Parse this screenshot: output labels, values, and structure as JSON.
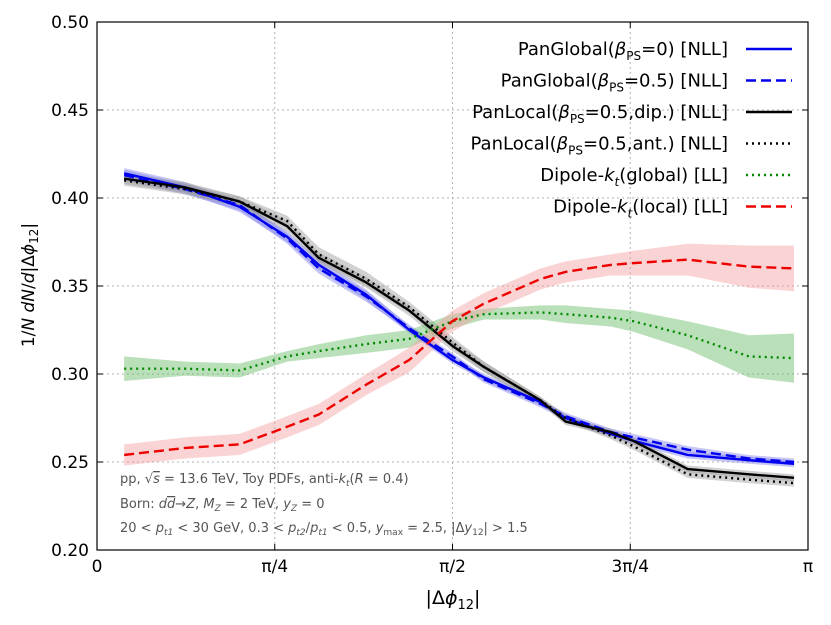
{
  "chart_data": {
    "type": "line",
    "xlabel": "|Δφ₁₂|",
    "ylabel": "1/N dN/d|Δφ₁₂|",
    "xlim": [
      0,
      3.14159
    ],
    "ylim": [
      0.2,
      0.5
    ],
    "xticks": [
      {
        "value": 0,
        "label": "0"
      },
      {
        "value": 0.7854,
        "label": "π/4"
      },
      {
        "value": 1.5708,
        "label": "π/2"
      },
      {
        "value": 2.3562,
        "label": "3π/4"
      },
      {
        "value": 3.14159,
        "label": "π"
      }
    ],
    "yticks": [
      {
        "value": 0.2,
        "label": "0.20"
      },
      {
        "value": 0.25,
        "label": "0.25"
      },
      {
        "value": 0.3,
        "label": "0.30"
      },
      {
        "value": 0.35,
        "label": "0.35"
      },
      {
        "value": 0.4,
        "label": "0.40"
      },
      {
        "value": 0.45,
        "label": "0.45"
      },
      {
        "value": 0.5,
        "label": "0.50"
      }
    ],
    "grid": true,
    "legend_position": "top-right",
    "x": [
      0.12,
      0.39,
      0.63,
      0.84,
      0.98,
      1.19,
      1.38,
      1.57,
      1.71,
      1.96,
      2.07,
      2.27,
      2.37,
      2.61,
      2.88,
      3.08
    ],
    "series": [
      {
        "name": "PanGlobal(β_PS=0) [NLL]",
        "name_parts": {
          "pre": "PanGlobal(",
          "sym": "β",
          "sub": "PS",
          "post": "=0) [NLL]"
        },
        "color": "#0000ee",
        "dash": "solid",
        "band": "#8080ee",
        "values": [
          0.414,
          0.406,
          0.395,
          0.378,
          0.362,
          0.345,
          0.325,
          0.308,
          0.298,
          0.284,
          0.275,
          0.266,
          0.262,
          0.254,
          0.251,
          0.249
        ],
        "band_halfwidth": [
          0.003,
          0.003,
          0.003,
          0.003,
          0.003,
          0.003,
          0.002,
          0.002,
          0.002,
          0.002,
          0.002,
          0.002,
          0.002,
          0.002,
          0.002,
          0.002
        ]
      },
      {
        "name": "PanGlobal(β_PS=0.5) [NLL]",
        "name_parts": {
          "pre": "PanGlobal(",
          "sym": "β",
          "sub": "PS",
          "post": "=0.5) [NLL]"
        },
        "color": "#0000ee",
        "dash": "dashed",
        "band": "#8080ee",
        "values": [
          0.413,
          0.405,
          0.396,
          0.377,
          0.36,
          0.344,
          0.326,
          0.31,
          0.297,
          0.283,
          0.276,
          0.267,
          0.264,
          0.257,
          0.252,
          0.25
        ],
        "band_halfwidth": [
          0.003,
          0.003,
          0.003,
          0.003,
          0.003,
          0.003,
          0.002,
          0.002,
          0.002,
          0.002,
          0.002,
          0.002,
          0.002,
          0.002,
          0.002,
          0.002
        ]
      },
      {
        "name": "PanLocal(β_PS=0.5,dip.) [NLL]",
        "name_parts": {
          "pre": "PanLocal(",
          "sym": "β",
          "sub": "PS",
          "post": "=0.5,dip.) [NLL]"
        },
        "color": "#000000",
        "dash": "solid",
        "band": "#999999",
        "values": [
          0.411,
          0.406,
          0.398,
          0.384,
          0.366,
          0.352,
          0.336,
          0.316,
          0.304,
          0.285,
          0.273,
          0.267,
          0.262,
          0.246,
          0.243,
          0.241
        ],
        "band_halfwidth": [
          0.003,
          0.003,
          0.003,
          0.003,
          0.003,
          0.003,
          0.003,
          0.003,
          0.003,
          0.002,
          0.002,
          0.002,
          0.002,
          0.002,
          0.002,
          0.002
        ]
      },
      {
        "name": "PanLocal(β_PS=0.5,ant.) [NLL]",
        "name_parts": {
          "pre": "PanLocal(",
          "sym": "β",
          "sub": "PS",
          "post": "=0.5,ant.) [NLL]"
        },
        "color": "#000000",
        "dash": "dotted",
        "band": "#999999",
        "values": [
          0.41,
          0.405,
          0.398,
          0.387,
          0.368,
          0.354,
          0.338,
          0.318,
          0.304,
          0.285,
          0.275,
          0.265,
          0.259,
          0.243,
          0.24,
          0.238
        ],
        "band_halfwidth": [
          0.003,
          0.003,
          0.003,
          0.003,
          0.004,
          0.004,
          0.003,
          0.003,
          0.003,
          0.002,
          0.002,
          0.002,
          0.002,
          0.002,
          0.002,
          0.002
        ]
      },
      {
        "name": "Dipole-k_t(global)  [LL]",
        "name_parts": {
          "pre": "Dipole-",
          "sym": "k",
          "sub": "t",
          "post": "(global)  [LL]"
        },
        "color": "#008800",
        "dash": "dotted",
        "band": "#66bb66",
        "values": [
          0.303,
          0.303,
          0.302,
          0.31,
          0.313,
          0.317,
          0.32,
          0.33,
          0.334,
          0.335,
          0.334,
          0.332,
          0.33,
          0.322,
          0.31,
          0.309
        ],
        "band_halfwidth": [
          0.007,
          0.004,
          0.004,
          0.003,
          0.004,
          0.005,
          0.005,
          0.004,
          0.003,
          0.004,
          0.005,
          0.005,
          0.006,
          0.008,
          0.012,
          0.014
        ]
      },
      {
        "name": "Dipole-k_t(local)  [LL]",
        "name_parts": {
          "pre": "Dipole-",
          "sym": "k",
          "sub": "t",
          "post": "(local)  [LL]"
        },
        "color": "#ee0000",
        "dash": "dashed",
        "band": "#f4a0a0",
        "values": [
          0.254,
          0.258,
          0.26,
          0.27,
          0.277,
          0.294,
          0.308,
          0.33,
          0.34,
          0.354,
          0.358,
          0.362,
          0.363,
          0.365,
          0.361,
          0.36
        ],
        "band_halfwidth": [
          0.006,
          0.006,
          0.006,
          0.006,
          0.006,
          0.006,
          0.007,
          0.006,
          0.006,
          0.006,
          0.006,
          0.006,
          0.007,
          0.009,
          0.012,
          0.013
        ]
      }
    ],
    "annotations": [
      "pp, √s = 13.6 TeV, Toy PDFs, anti-k_t(R = 0.4)",
      "Born: dd̄→Z, M_Z = 2 TeV, y_Z = 0",
      "20 < p_t1 < 30 GeV, 0.3 < p_t2/p_t1 < 0.5, y_max = 2.5, |Δy₁₂| > 1.5"
    ]
  }
}
